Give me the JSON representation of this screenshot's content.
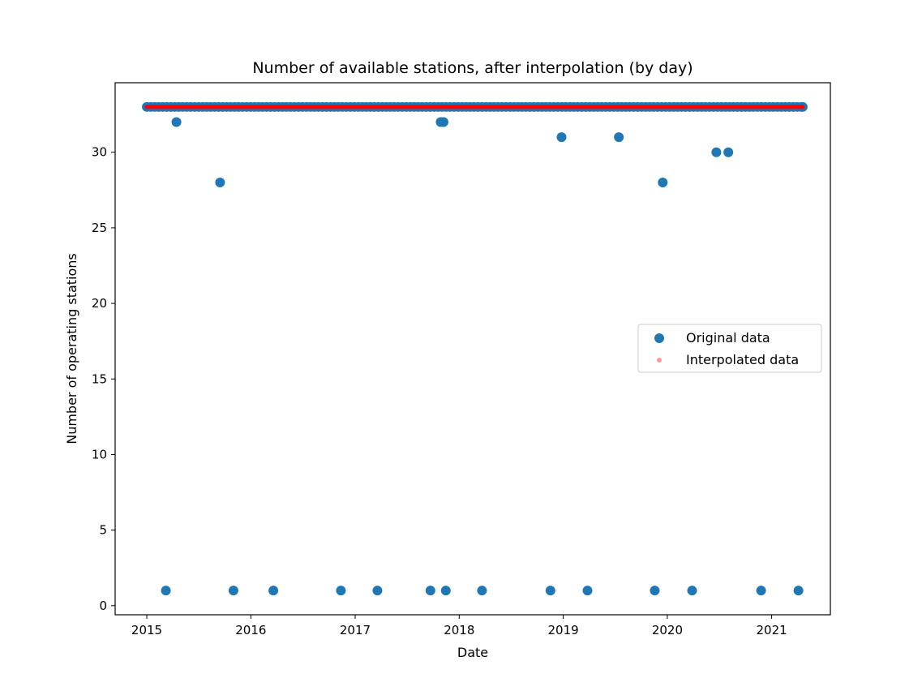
{
  "chart_data": {
    "type": "scatter",
    "title": "Number of available stations, after interpolation (by day)",
    "xlabel": "Date",
    "ylabel": "Number of operating stations",
    "x_axis_type": "date",
    "xlim": [
      "2014-09-12",
      "2021-07-26"
    ],
    "ylim": [
      -0.6,
      34.6
    ],
    "x_ticks": [
      {
        "date": "2015-01-01",
        "label": "2015"
      },
      {
        "date": "2016-01-01",
        "label": "2016"
      },
      {
        "date": "2017-01-01",
        "label": "2017"
      },
      {
        "date": "2018-01-01",
        "label": "2018"
      },
      {
        "date": "2019-01-01",
        "label": "2019"
      },
      {
        "date": "2020-01-01",
        "label": "2020"
      },
      {
        "date": "2021-01-01",
        "label": "2021"
      }
    ],
    "y_ticks": [
      0,
      5,
      10,
      15,
      20,
      25,
      30
    ],
    "grid": false,
    "legend": {
      "placement": "center-right"
    },
    "series": [
      {
        "name": "Original data",
        "color": "#1f77b4",
        "marker": "circle",
        "continuous_runs": [
          {
            "y": 33,
            "x_start": "2015-01-01",
            "x_end": "2021-04-20"
          }
        ],
        "points": [
          {
            "x": "2015-03-09",
            "y": 1
          },
          {
            "x": "2015-04-15",
            "y": 32
          },
          {
            "x": "2015-09-15",
            "y": 28
          },
          {
            "x": "2015-11-01",
            "y": 1
          },
          {
            "x": "2016-03-20",
            "y": 1
          },
          {
            "x": "2016-11-12",
            "y": 1
          },
          {
            "x": "2017-03-20",
            "y": 1
          },
          {
            "x": "2017-09-22",
            "y": 1
          },
          {
            "x": "2017-10-28",
            "y": 32
          },
          {
            "x": "2017-11-07",
            "y": 32
          },
          {
            "x": "2017-11-15",
            "y": 1
          },
          {
            "x": "2018-03-22",
            "y": 1
          },
          {
            "x": "2018-11-17",
            "y": 1
          },
          {
            "x": "2018-12-26",
            "y": 31
          },
          {
            "x": "2019-03-27",
            "y": 1
          },
          {
            "x": "2019-07-15",
            "y": 31
          },
          {
            "x": "2019-11-18",
            "y": 1
          },
          {
            "x": "2019-12-16",
            "y": 28
          },
          {
            "x": "2020-03-28",
            "y": 1
          },
          {
            "x": "2020-06-21",
            "y": 30
          },
          {
            "x": "2020-08-02",
            "y": 30
          },
          {
            "x": "2020-11-25",
            "y": 1
          },
          {
            "x": "2021-04-05",
            "y": 1
          }
        ]
      },
      {
        "name": "Interpolated data",
        "color": "#ff0000",
        "marker": "small-circle",
        "continuous_runs": [
          {
            "y": 33,
            "x_start": "2015-01-01",
            "x_end": "2021-04-20"
          }
        ]
      }
    ]
  }
}
